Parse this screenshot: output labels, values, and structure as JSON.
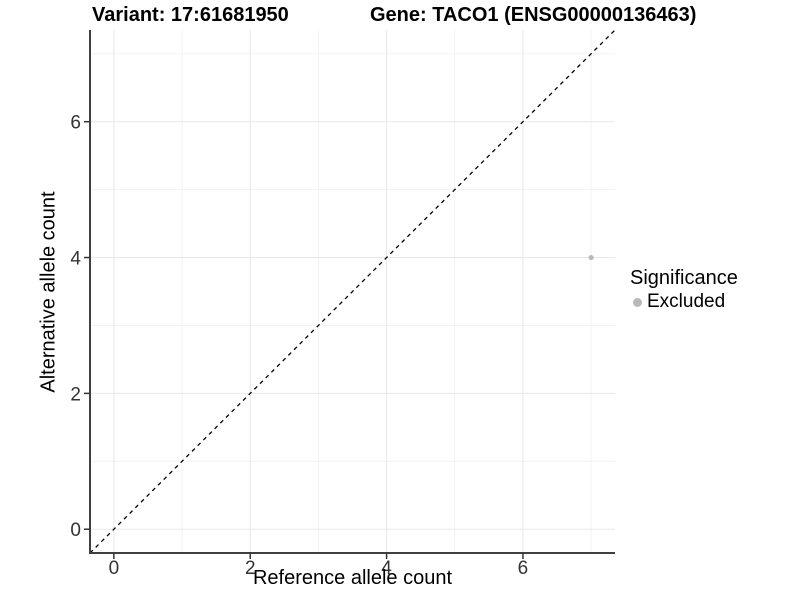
{
  "chart_data": {
    "type": "scatter",
    "title_left": "Variant: 17:61681950",
    "title_right": "Gene: TACO1 (ENSG00000136463)",
    "xlabel": "Reference allele count",
    "ylabel": "Alternative allele count",
    "xlim": [
      -0.35,
      7.35
    ],
    "ylim": [
      -0.35,
      7.35
    ],
    "x_major_ticks": [
      0,
      2,
      4,
      6
    ],
    "x_minor_ticks": [
      1,
      3,
      5,
      7
    ],
    "y_major_ticks": [
      0,
      2,
      4,
      6
    ],
    "y_minor_ticks": [
      1,
      3,
      5,
      7
    ],
    "grid": "on",
    "identity_line": {
      "style": "dashed",
      "slope": 1,
      "intercept": 0,
      "color": "#000000"
    },
    "series": [
      {
        "name": "Excluded",
        "color": "#b9b9b9",
        "points": [
          {
            "x": 7,
            "y": 4
          }
        ]
      }
    ],
    "legend": {
      "position": "right",
      "title": "Significance",
      "items": [
        {
          "label": "Excluded",
          "color": "#b9b9b9"
        }
      ]
    },
    "style": {
      "grid_major_color": "#e8e8e8",
      "grid_minor_color": "#f3f3f3",
      "axis_line_color": "#404040",
      "tick_mark_color": "#333333",
      "tick_text_color": "#333333",
      "text_color": "#000000",
      "background": "#ffffff"
    }
  }
}
